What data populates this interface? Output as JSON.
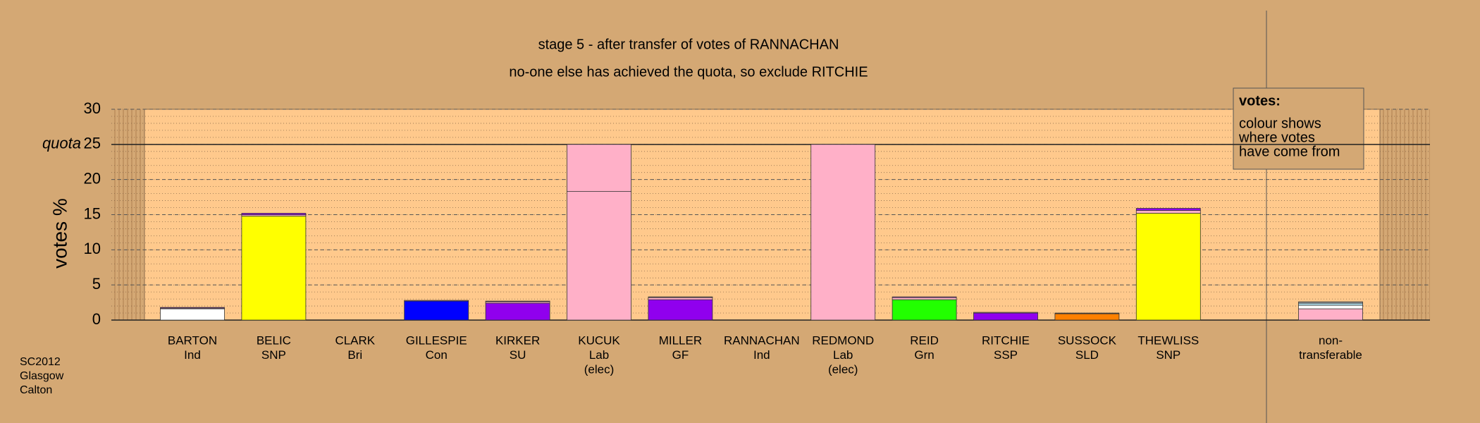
{
  "chart_data": {
    "type": "stacked-bar",
    "title": "stage 5 - after transfer of votes of RANNACHAN",
    "subtitle": "no-one else has achieved the quota, so exclude RITCHIE",
    "y_label": "votes %",
    "quota_label": "quota",
    "quota": 25,
    "ylim": [
      0,
      30
    ],
    "yticks": [
      0,
      5,
      10,
      15,
      20,
      25,
      30
    ],
    "minor_grid": 1,
    "categories": [
      [
        "BARTON",
        "Ind"
      ],
      [
        "BELIC",
        "SNP"
      ],
      [
        "CLARK",
        "Bri"
      ],
      [
        "GILLESPIE",
        "Con"
      ],
      [
        "KIRKER",
        "SU"
      ],
      [
        "KUCUK",
        "Lab",
        "(elec)"
      ],
      [
        "MILLER",
        "GF"
      ],
      [
        "RANNACHAN",
        "Ind"
      ],
      [
        "REDMOND",
        "Lab",
        "(elec)"
      ],
      [
        "REID",
        "Grn"
      ],
      [
        "RITCHIE",
        "SSP"
      ],
      [
        "SUSSOCK",
        "SLD"
      ],
      [
        "THEWLISS",
        "SNP"
      ],
      [
        "non-",
        "transferable"
      ]
    ],
    "segments": [
      [
        {
          "value": 1.6,
          "color": "#ffffff"
        },
        {
          "value": 0.1,
          "color": "#ffb0c8"
        },
        {
          "value": 0.1,
          "color": "#9000ee"
        }
      ],
      [
        {
          "value": 14.8,
          "color": "#ffff00"
        },
        {
          "value": 0.2,
          "color": "#ffb0c8"
        },
        {
          "value": 0.2,
          "color": "#9000ee"
        }
      ],
      [
        {
          "value": 0,
          "color": "#555555"
        }
      ],
      [
        {
          "value": 2.7,
          "color": "#0000ff"
        },
        {
          "value": 0.1,
          "color": "#ffb0c8"
        }
      ],
      [
        {
          "value": 2.4,
          "color": "#9000ee"
        },
        {
          "value": 0.2,
          "color": "#ffb0c8"
        },
        {
          "value": 0.1,
          "color": "#555555"
        }
      ],
      [
        {
          "value": 18.3,
          "color": "#ffb0c8"
        },
        {
          "value": 6.7,
          "color": "#ffb0c8"
        }
      ],
      [
        {
          "value": 2.9,
          "color": "#9000ee"
        },
        {
          "value": 0.3,
          "color": "#ffb0c8"
        },
        {
          "value": 0.1,
          "color": "#555555"
        }
      ],
      [
        {
          "value": 0,
          "color": "#555555"
        }
      ],
      [
        {
          "value": 25,
          "color": "#ffb0c8"
        }
      ],
      [
        {
          "value": 2.9,
          "color": "#22ff00"
        },
        {
          "value": 0.3,
          "color": "#ffb0c8"
        },
        {
          "value": 0.1,
          "color": "#9000ee"
        }
      ],
      [
        {
          "value": 1.0,
          "color": "#9000ee"
        },
        {
          "value": 0.1,
          "color": "#ffb0c8"
        }
      ],
      [
        {
          "value": 0.9,
          "color": "#ff8000"
        },
        {
          "value": 0.1,
          "color": "#555555"
        }
      ],
      [
        {
          "value": 15.2,
          "color": "#ffff00"
        },
        {
          "value": 0.4,
          "color": "#ffb0c8"
        },
        {
          "value": 0.3,
          "color": "#9000ee"
        }
      ],
      [
        {
          "value": 1.6,
          "color": "#ffb0c8"
        },
        {
          "value": 0.5,
          "color": "#ffffff"
        },
        {
          "value": 0.3,
          "color": "#add8e6"
        },
        {
          "value": 0.2,
          "color": "#999999"
        }
      ]
    ],
    "legend_title": "votes:",
    "legend_text": [
      "colour shows",
      "where votes",
      "have come from"
    ],
    "footnote": [
      "SC2012",
      "Glasgow",
      "Calton"
    ]
  }
}
